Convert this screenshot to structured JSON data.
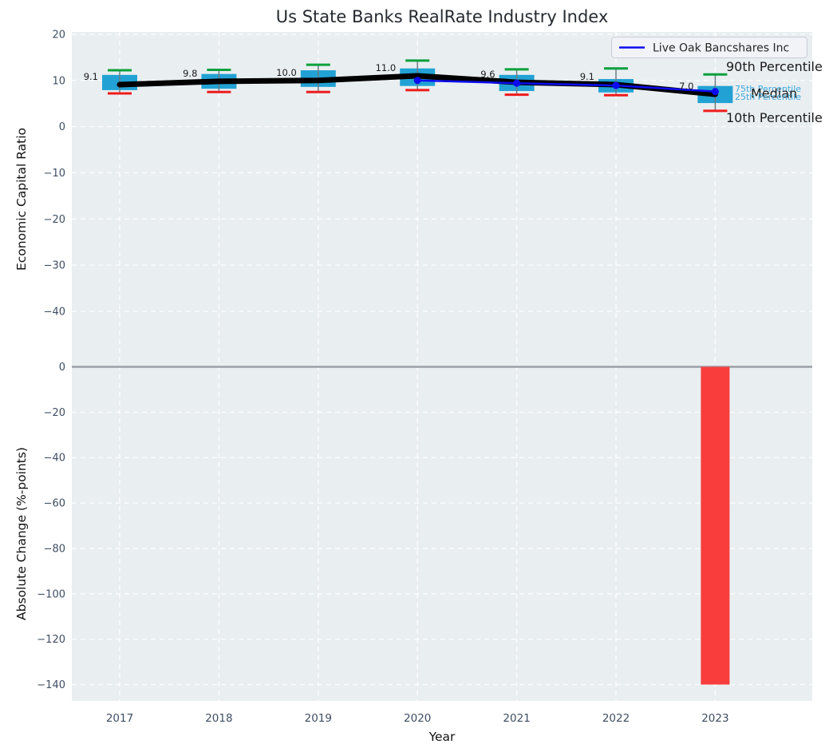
{
  "title": "Us State Banks RealRate Industry Index",
  "legend": {
    "label": "Live Oak Bancshares Inc"
  },
  "annotations": {
    "p90": "90th Percentile",
    "p75": "75th Percentile",
    "median": "Median",
    "p25": "25th Percentile",
    "p10": "10th Percentile"
  },
  "colors": {
    "panel_bg": "#e9eef1",
    "grid": "#ffffff",
    "box_fill": "#22a2d4",
    "cap_green": "#0aa03c",
    "cap_red": "#ee1c1c",
    "whisker": "#6b7b84",
    "median_line": "#000000",
    "live_oak_line": "#0c0cf0",
    "bar_red": "#f93d3d",
    "zero_line": "#9aa0a6",
    "annot_blue": "#3fa9dc"
  },
  "chart_data": [
    {
      "type": "boxplot+line",
      "title": "Us State Banks RealRate Industry Index",
      "xlabel": "Year",
      "ylabel": "Economic Capital Ratio",
      "categories": [
        "2017",
        "2018",
        "2019",
        "2020",
        "2021",
        "2022",
        "2023"
      ],
      "yticks": [
        20,
        10,
        0,
        -10,
        -20,
        -30,
        -40
      ],
      "ylim": [
        -52,
        20.8
      ],
      "grid": true,
      "legend_position": "upper right",
      "series": [
        {
          "name": "90th Percentile",
          "values": [
            12.2,
            12.3,
            13.4,
            14.3,
            12.4,
            12.6,
            11.3
          ]
        },
        {
          "name": "75th Percentile",
          "values": [
            11.2,
            11.4,
            12.2,
            12.6,
            11.2,
            10.3,
            8.8
          ]
        },
        {
          "name": "Median",
          "values": [
            9.1,
            9.8,
            10.0,
            11.0,
            9.6,
            9.1,
            7.0
          ]
        },
        {
          "name": "25th Percentile",
          "values": [
            7.9,
            8.2,
            8.6,
            8.8,
            7.7,
            7.4,
            5.1
          ]
        },
        {
          "name": "10th Percentile",
          "values": [
            7.2,
            7.5,
            7.5,
            7.9,
            6.9,
            6.8,
            3.4
          ]
        },
        {
          "name": "Live Oak Bancshares Inc",
          "values": [
            null,
            null,
            null,
            10.0,
            9.4,
            8.9,
            7.6
          ]
        }
      ],
      "median_labels": [
        "9.1",
        "9.8",
        "10.0",
        "11.0",
        "9.6",
        "9.1",
        "7.0"
      ]
    },
    {
      "type": "bar",
      "xlabel": "Year",
      "ylabel": "Absolute Change (%-points)",
      "categories": [
        "2017",
        "2018",
        "2019",
        "2020",
        "2021",
        "2022",
        "2023"
      ],
      "values": [
        null,
        null,
        null,
        null,
        null,
        null,
        -140
      ],
      "yticks": [
        0,
        -20,
        -40,
        -60,
        -80,
        -100,
        -120,
        -140
      ],
      "ylim": [
        -147,
        0.3
      ],
      "grid": true
    }
  ],
  "axis": {
    "ylabel_top": "Economic Capital Ratio",
    "ylabel_bottom": "Absolute Change (%-points)",
    "xlabel": "Year"
  }
}
